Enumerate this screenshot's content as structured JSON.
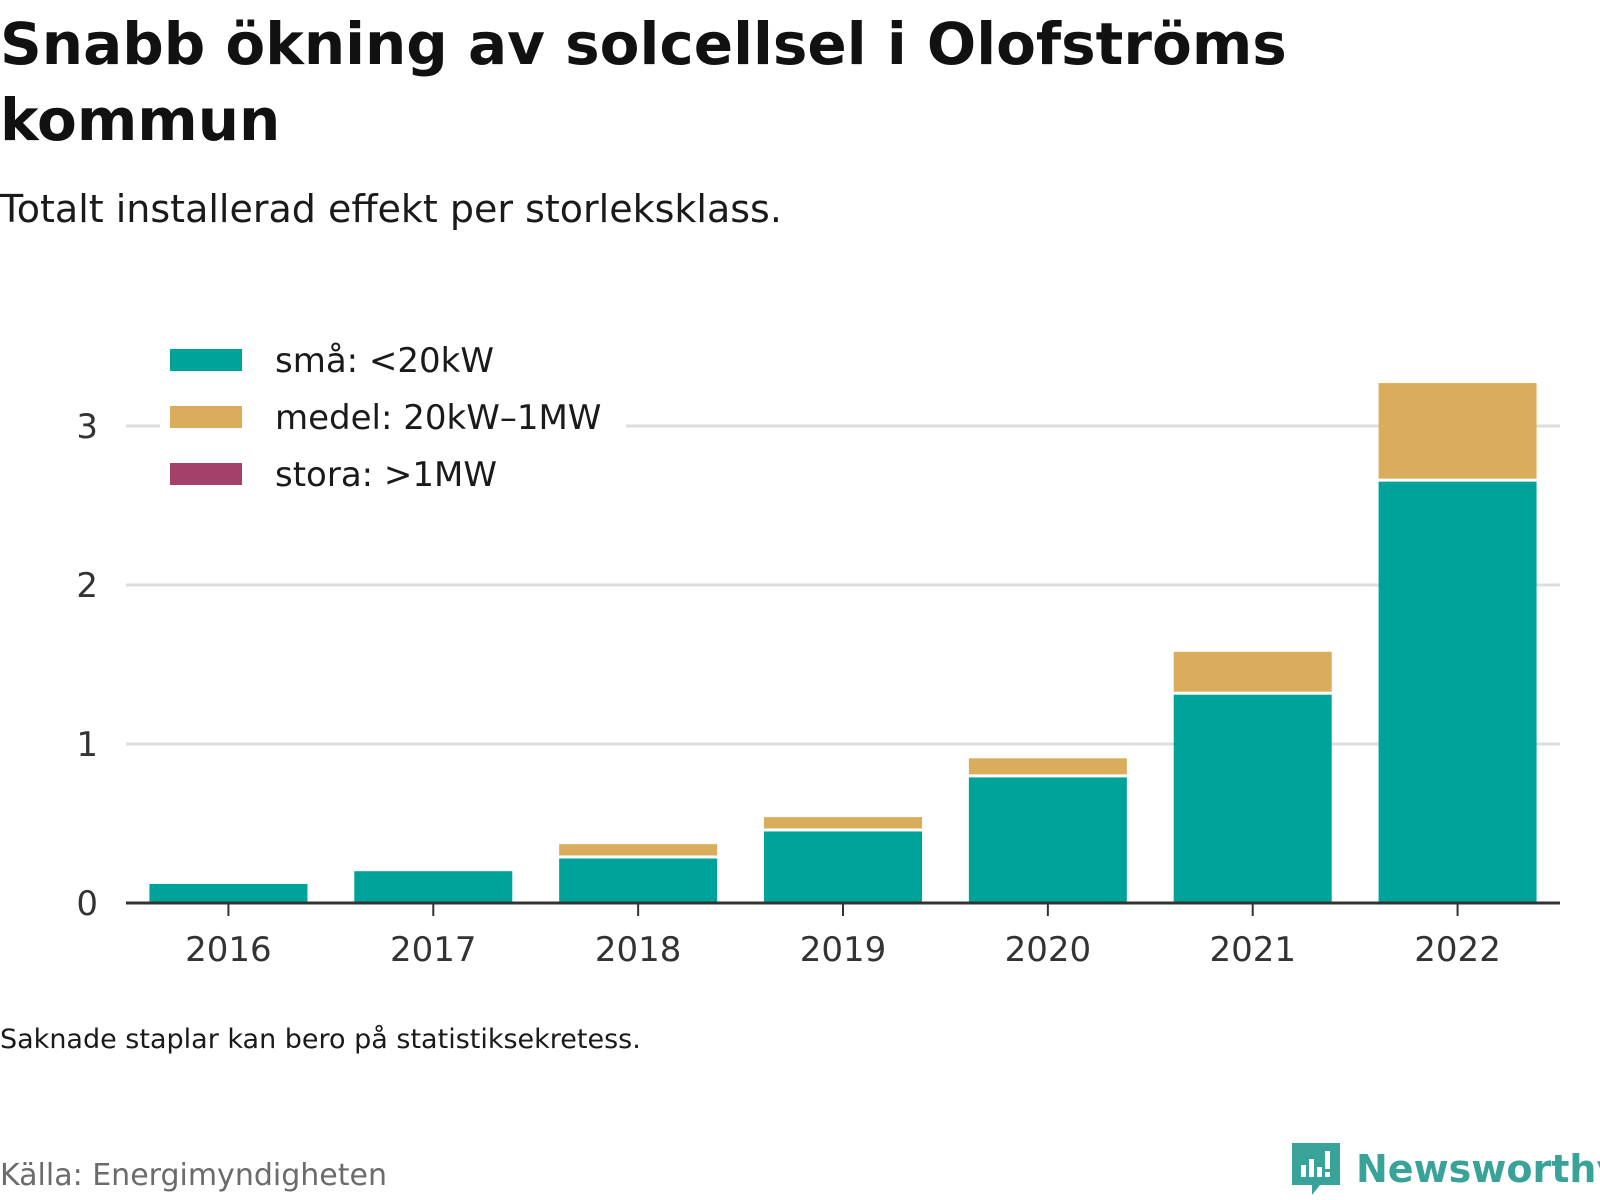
{
  "title": "Snabb ökning av solcellsel i Olofströms kommun",
  "subtitle": "Totalt installerad effekt per storleksklass.",
  "note": "Saknade staplar kan bero på statistiksekretess.",
  "source": "Källa: Energimyndigheten",
  "brand": "Newsworthy",
  "colors": {
    "sma": "#00a39a",
    "medel": "#d9ad5b",
    "stora": "#a3416a",
    "grid": "#dddddd",
    "axis": "#333333",
    "brand": "#3aa399"
  },
  "chart_data": {
    "type": "bar",
    "stacked": true,
    "title": "Snabb ökning av solcellsel i Olofströms kommun",
    "subtitle": "Totalt installerad effekt per storleksklass.",
    "categories": [
      "2016",
      "2017",
      "2018",
      "2019",
      "2020",
      "2021",
      "2022"
    ],
    "series": [
      {
        "name": "små: <20kW",
        "color": "#00a39a",
        "values": [
          0.12,
          0.2,
          0.28,
          0.45,
          0.79,
          1.31,
          2.65
        ]
      },
      {
        "name": "medel: 20kW–1MW",
        "color": "#d9ad5b",
        "values": [
          0,
          0,
          0.09,
          0.09,
          0.12,
          0.27,
          0.62
        ]
      },
      {
        "name": "stora: >1MW",
        "color": "#a3416a",
        "values": [
          0,
          0,
          0,
          0,
          0,
          0,
          0
        ]
      }
    ],
    "ylim": [
      0,
      3.3
    ],
    "yticks": [
      0,
      1,
      2,
      3
    ],
    "grid": true,
    "legend": "top-left"
  }
}
